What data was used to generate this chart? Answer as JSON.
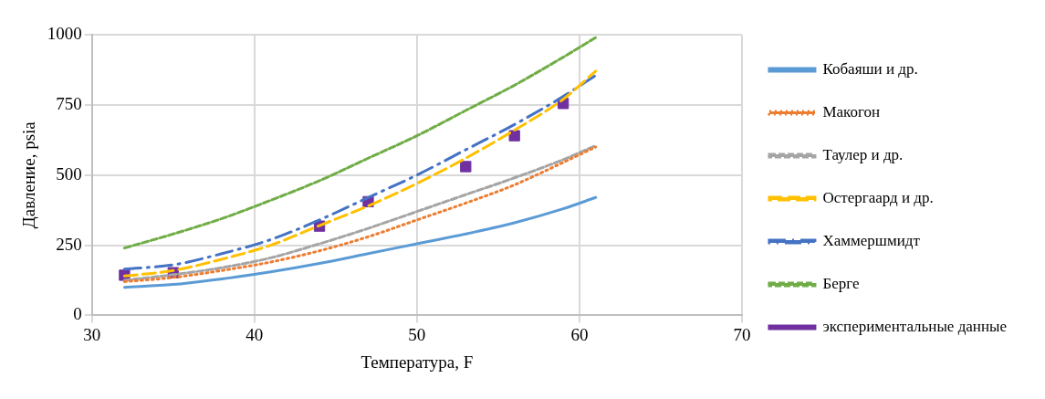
{
  "chart_data": {
    "type": "line",
    "xlabel": "Температура, F",
    "ylabel": "Давление, psia",
    "xlim": [
      30,
      70
    ],
    "xticks": [
      30,
      40,
      50,
      60,
      70
    ],
    "ylim": [
      0,
      1000
    ],
    "yticks": [
      0,
      250,
      500,
      750,
      1000
    ],
    "grid": true,
    "legend": "right",
    "x": [
      32,
      35,
      38,
      41,
      44,
      47,
      50,
      53,
      56,
      59,
      61
    ],
    "series": [
      {
        "name": "Кобаяши и др.",
        "color": "#5b9bd5",
        "line_style": "solid",
        "marker": "none",
        "values": [
          100,
          110,
          130,
          155,
          185,
          220,
          255,
          290,
          330,
          380,
          420
        ]
      },
      {
        "name": "Макогон",
        "color": "#ed7d31",
        "line_style": "dotted",
        "marker": "none",
        "values": [
          120,
          135,
          160,
          190,
          230,
          280,
          340,
          400,
          465,
          545,
          600
        ]
      },
      {
        "name": "Таулер и др.",
        "color": "#a5a5a5",
        "line_style": "dashed",
        "marker": "none",
        "values": [
          125,
          145,
          170,
          205,
          255,
          310,
          370,
          430,
          490,
          555,
          605
        ]
      },
      {
        "name": "Остергаард и др.",
        "color": "#ffc000",
        "line_style": "dashed",
        "marker": "none",
        "values": [
          140,
          160,
          200,
          250,
          320,
          390,
          470,
          560,
          660,
          770,
          870
        ]
      },
      {
        "name": "Хаммершмидт",
        "color": "#4472c4",
        "line_style": "dashed",
        "marker": "none",
        "values": [
          165,
          180,
          220,
          270,
          340,
          420,
          500,
          590,
          680,
          780,
          855
        ]
      },
      {
        "name": "Берге",
        "color": "#70ad47",
        "line_style": "dashed",
        "marker": "none",
        "values": [
          240,
          290,
          345,
          410,
          480,
          560,
          640,
          730,
          820,
          920,
          990
        ]
      },
      {
        "name": "экспериментальные данные",
        "type": "scatter",
        "color": "#7030a0",
        "marker": "square",
        "x": [
          32,
          35,
          44,
          47,
          53,
          56,
          59
        ],
        "values": [
          143,
          152,
          318,
          405,
          530,
          640,
          755
        ]
      }
    ]
  }
}
